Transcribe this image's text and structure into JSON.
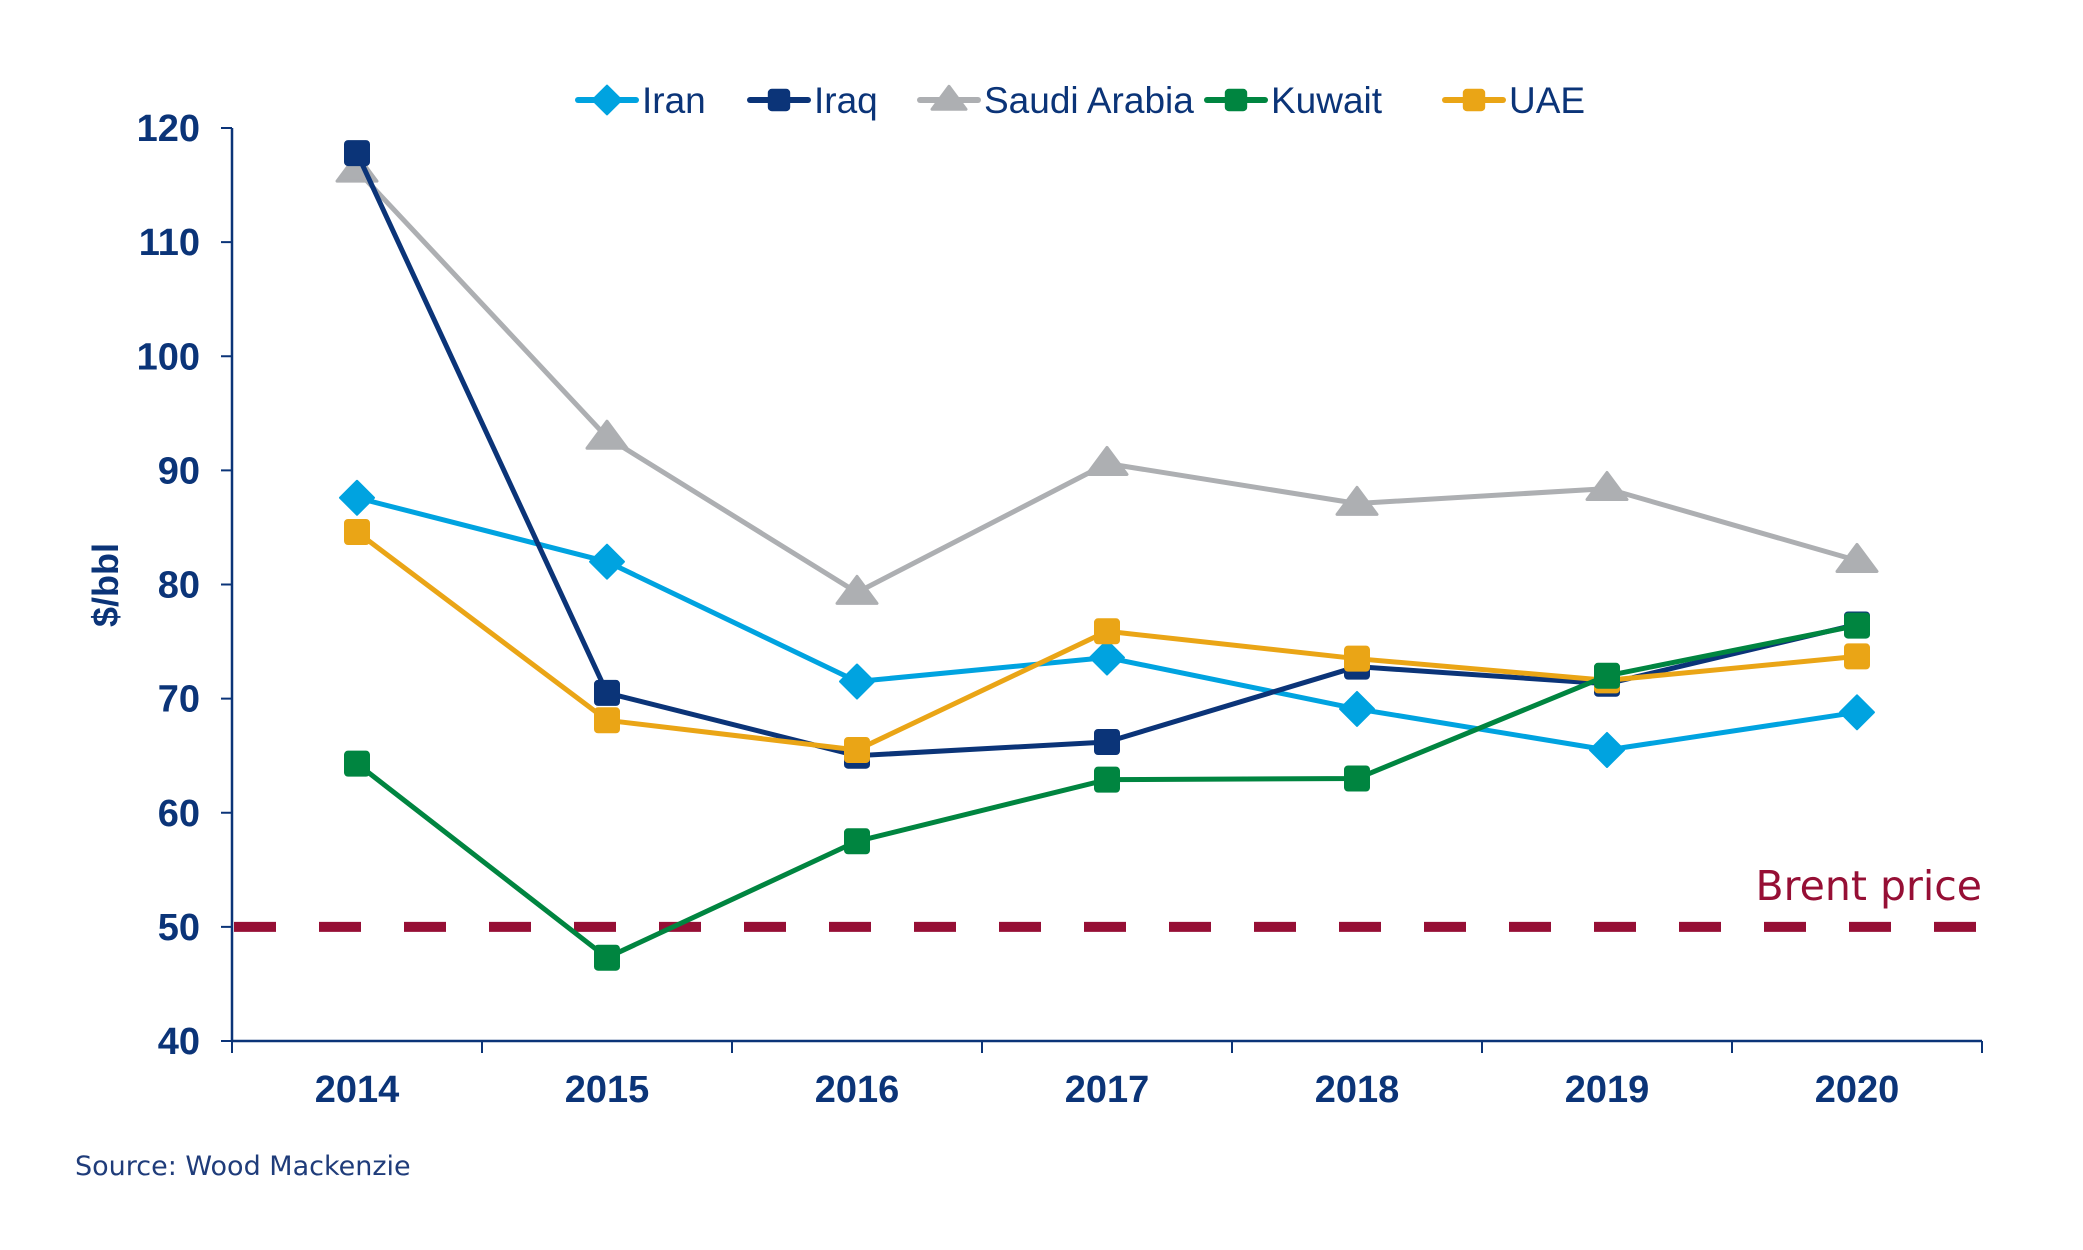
{
  "chart_data": {
    "type": "line",
    "title": "",
    "xlabel": "",
    "ylabel": "$/bbl",
    "ylim": [
      40,
      120
    ],
    "yticks": [
      40,
      50,
      60,
      70,
      80,
      90,
      100,
      110,
      120
    ],
    "categories": [
      "2014",
      "2015",
      "2016",
      "2017",
      "2018",
      "2019",
      "2020"
    ],
    "grid": false,
    "legend_position": "top-center",
    "series": [
      {
        "name": "Iran",
        "marker": "diamond",
        "color": "#00A3E0",
        "values": [
          87.6,
          82.0,
          71.5,
          73.6,
          69.1,
          65.5,
          68.8
        ]
      },
      {
        "name": "Iraq",
        "marker": "square",
        "color": "#0B3478",
        "values": [
          117.8,
          70.5,
          65.0,
          66.2,
          72.8,
          71.3,
          76.5
        ]
      },
      {
        "name": "Saudi Arabia",
        "marker": "triangle",
        "color": "#ADAFB2",
        "values": [
          116.3,
          92.9,
          79.3,
          90.6,
          87.1,
          88.4,
          82.1
        ]
      },
      {
        "name": "Kuwait",
        "marker": "square",
        "color": "#008540",
        "values": [
          64.3,
          47.3,
          57.5,
          62.9,
          63.0,
          72.0,
          76.4
        ]
      },
      {
        "name": "UAE",
        "marker": "square",
        "color": "#EAA516",
        "values": [
          84.6,
          68.1,
          65.5,
          75.9,
          73.5,
          71.6,
          73.7
        ]
      }
    ],
    "reference_lines": [
      {
        "label": "Brent price",
        "value": 50,
        "style": "dashed",
        "color": "#960F35"
      }
    ],
    "axis_color": "#0B3478",
    "source": "Source: Wood Mackenzie"
  }
}
